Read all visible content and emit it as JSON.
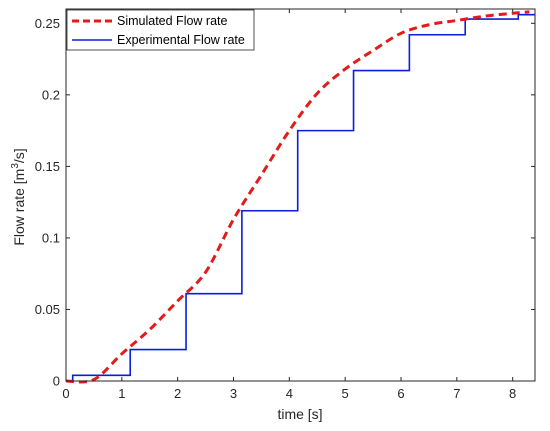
{
  "chart_data": {
    "type": "line",
    "xlabel": "time [s]",
    "ylabel_prefix": "Flow rate [m",
    "ylabel_sup": "3",
    "ylabel_suffix": "/s]",
    "xlim": [
      0,
      8.4
    ],
    "ylim": [
      0,
      0.26
    ],
    "xticks": [
      0,
      1,
      2,
      3,
      4,
      5,
      6,
      7,
      8
    ],
    "xtick_labels": [
      "0",
      "1",
      "2",
      "3",
      "4",
      "5",
      "6",
      "7",
      "8"
    ],
    "yticks": [
      0,
      0.05,
      0.1,
      0.15,
      0.2,
      0.25
    ],
    "ytick_labels": [
      "0",
      "0.05",
      "0.1",
      "0.15",
      "0.2",
      "0.25"
    ],
    "legend_position": "top-left",
    "series": [
      {
        "name": "Simulated Flow rate",
        "style": "dashed",
        "color": "#e21b1b",
        "x": [
          0,
          0.5,
          1.0,
          1.5,
          2.0,
          2.5,
          3.0,
          3.5,
          4.0,
          4.5,
          5.0,
          5.5,
          6.0,
          6.5,
          7.0,
          7.5,
          8.0,
          8.3
        ],
        "y": [
          0.0,
          0.001,
          0.019,
          0.036,
          0.056,
          0.076,
          0.113,
          0.144,
          0.175,
          0.201,
          0.218,
          0.231,
          0.243,
          0.249,
          0.252,
          0.255,
          0.257,
          0.258
        ]
      },
      {
        "name": "Experimental Flow rate",
        "style": "solid",
        "color": "#0a1edc",
        "x": [
          0.0,
          0.12,
          0.12,
          1.15,
          1.15,
          2.15,
          2.15,
          3.15,
          3.15,
          4.15,
          4.15,
          5.15,
          5.15,
          6.15,
          6.15,
          7.15,
          7.15,
          8.1,
          8.1,
          8.4
        ],
        "y": [
          0.0,
          0.0,
          0.004,
          0.004,
          0.022,
          0.022,
          0.061,
          0.061,
          0.119,
          0.119,
          0.175,
          0.175,
          0.217,
          0.217,
          0.242,
          0.242,
          0.253,
          0.253,
          0.256,
          0.256
        ]
      }
    ]
  }
}
